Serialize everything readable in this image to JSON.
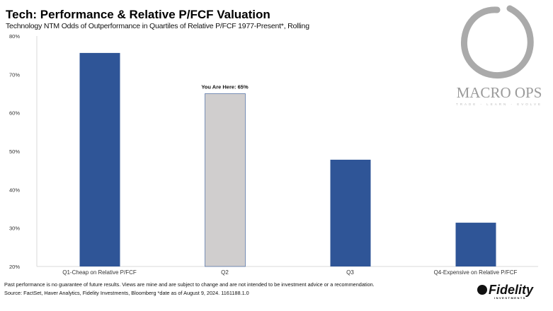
{
  "title": "Tech: Performance & Relative P/FCF Valuation",
  "subtitle": "Technology  NTM Odds of Outperformance  in Quartiles of Relative P/FCF 1977-Present*, Rolling",
  "chart_data": {
    "type": "bar",
    "categories": [
      "Q1-Cheap on Relative P/FCF",
      "Q2",
      "Q3",
      "Q4-Expensive on Relative P/FCF"
    ],
    "values": [
      75.6,
      65,
      47.8,
      31.4
    ],
    "colors": [
      "#2f5597",
      "#d0cece",
      "#2f5597",
      "#2f5597"
    ],
    "ylim": [
      20,
      80
    ],
    "yticks": [
      "20%",
      "30%",
      "40%",
      "50%",
      "60%",
      "70%",
      "80%"
    ],
    "annotation": "You Are Here: 65%",
    "grid": false
  },
  "footer": {
    "disclaimer": "Past performance is no guarantee of future results. Views are mine and are subject to change and are not intended to be investment advice or a recommendation.",
    "source": "Source: FactSet, Haver Analytics, Fidelity Investments, Bloomberg *date as of August 9, 2024. 1161188.1.0"
  },
  "logos": {
    "watermark": "MACRO OPS",
    "watermark_tagline": "TRADE - LEARN - EVOLVE",
    "brand": "Fidelity",
    "brand_sub": "INVESTMENTS"
  }
}
